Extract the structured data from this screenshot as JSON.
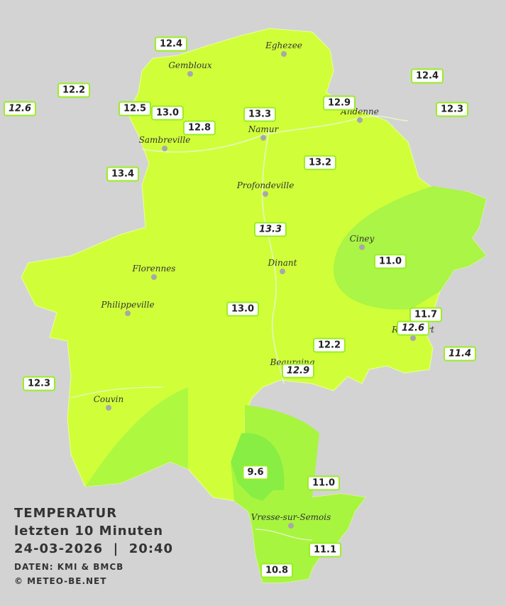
{
  "title": "TEMPERATUR",
  "subtitle": "letzten 10 Minuten",
  "timestamp": "24-03-2026  |  20:40",
  "source": "DATEN: KMI & BMCB",
  "copyright": "© METEO-BE.NET",
  "places": [
    "Eghezee",
    "Gembloux",
    "Andenne",
    "Namur",
    "Sambreville",
    "Profondeville",
    "Ciney",
    "Dinant",
    "Florennes",
    "Philippeville",
    "Rochefort",
    "Beauraing",
    "Couvin",
    "Vresse-sur-Semois"
  ],
  "stations": [
    "12.4",
    "12.2",
    "12.6",
    "12.5",
    "13.0",
    "12.8",
    "13.3",
    "12.9",
    "12.4",
    "12.3",
    "13.4",
    "13.2",
    "13.3",
    "11.0",
    "13.0",
    "11.7",
    "12.6",
    "11.4",
    "12.2",
    "12.9",
    "12.3",
    "9.6",
    "11.0",
    "11.1",
    "10.8"
  ]
}
